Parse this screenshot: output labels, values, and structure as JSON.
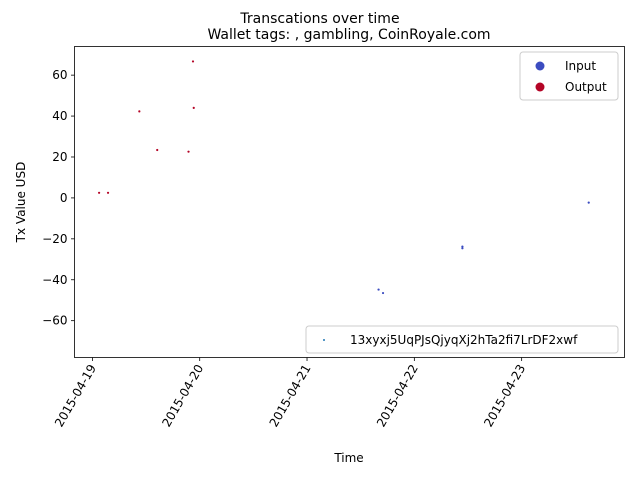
{
  "chart_data": {
    "type": "scatter",
    "suptitle": "Transcations over time",
    "title": "Wallet tags: , gambling, CoinRoyale.com",
    "xlabel": "Time",
    "ylabel": "Tx Value USD",
    "x_ticks": [
      "2015-04-19",
      "2015-04-20",
      "2015-04-21",
      "2015-04-22",
      "2015-04-23"
    ],
    "y_ticks": [
      -60,
      -40,
      -20,
      0,
      20,
      40,
      60
    ],
    "xlim": [
      "2015-04-18T20:00",
      "2015-04-23T23:00"
    ],
    "ylim": [
      -78,
      74
    ],
    "grid": false,
    "color_legend": {
      "placement": "top-right",
      "entries": [
        {
          "name": "Input",
          "color": "#3b4cc0"
        },
        {
          "name": "Output",
          "color": "#b40426"
        }
      ]
    },
    "wallet_legend": {
      "placement": "bottom-right",
      "label": "13xyxj5UqPJsQjyqXj2hTa2fi7LrDF2xwf",
      "color": "#1f77b4"
    },
    "series": [
      {
        "name": "Output",
        "color": "#b40426",
        "points": [
          {
            "x": "2015-04-19T01:30",
            "y": 2.5
          },
          {
            "x": "2015-04-19T03:30",
            "y": 2.5
          },
          {
            "x": "2015-04-19T10:30",
            "y": 42.3
          },
          {
            "x": "2015-04-19T14:30",
            "y": 23.4
          },
          {
            "x": "2015-04-19T21:30",
            "y": 22.6
          },
          {
            "x": "2015-04-19T22:30",
            "y": 66.7
          },
          {
            "x": "2015-04-19T22:40",
            "y": 44.0
          }
        ]
      },
      {
        "name": "Input",
        "color": "#3b4cc0",
        "points": [
          {
            "x": "2015-04-21T16:00",
            "y": -44.8
          },
          {
            "x": "2015-04-21T17:00",
            "y": -46.5
          },
          {
            "x": "2015-04-22T10:45",
            "y": -23.8
          },
          {
            "x": "2015-04-22T10:45",
            "y": -24.6
          },
          {
            "x": "2015-04-23T15:00",
            "y": -2.3
          }
        ]
      }
    ]
  }
}
